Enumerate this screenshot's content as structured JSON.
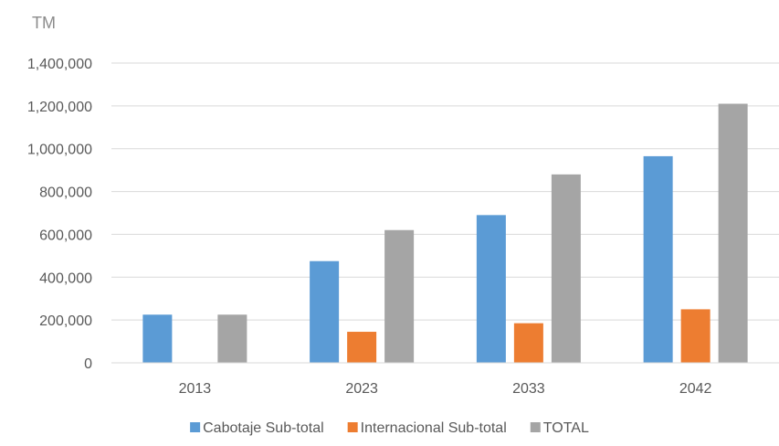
{
  "chart_data": {
    "type": "bar",
    "unit_label": "TM",
    "categories": [
      "2013",
      "2023",
      "2033",
      "2042"
    ],
    "series": [
      {
        "name": "Cabotaje Sub-total",
        "color": "#5b9bd5",
        "values": [
          225000,
          475000,
          690000,
          965000
        ]
      },
      {
        "name": "Internacional Sub-total",
        "color": "#ed7d31",
        "values": [
          0,
          145000,
          185000,
          250000
        ]
      },
      {
        "name": "TOTAL",
        "color": "#a5a5a5",
        "values": [
          225000,
          620000,
          880000,
          1210000
        ]
      }
    ],
    "yticks": [
      "0",
      "200,000",
      "400,000",
      "600,000",
      "800,000",
      "1,000,000",
      "1,200,000",
      "1,400,000"
    ],
    "ylim": [
      0,
      1400000
    ],
    "grid": true,
    "legend_position": "bottom"
  }
}
